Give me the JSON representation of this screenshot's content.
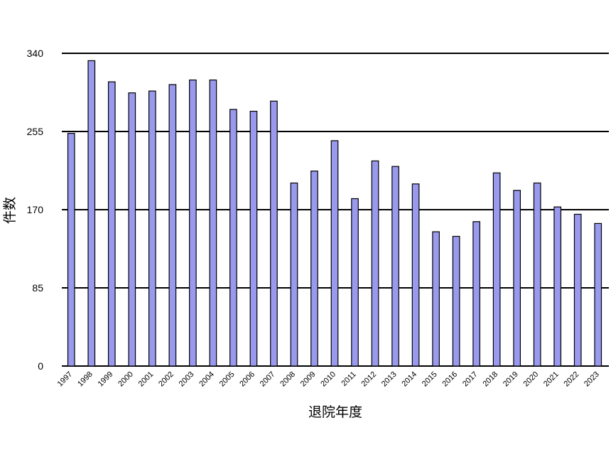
{
  "chart_data": {
    "type": "bar",
    "xlabel": "退院年度",
    "ylabel": "件数",
    "ylim": [
      0,
      340
    ],
    "yticks": [
      0,
      85,
      170,
      255,
      340
    ],
    "grid": "horizontal",
    "bar_color": "#9999ee",
    "categories": [
      "1997",
      "1998",
      "1999",
      "2000",
      "2001",
      "2002",
      "2003",
      "2004",
      "2005",
      "2006",
      "2007",
      "2008",
      "2009",
      "2010",
      "2011",
      "2012",
      "2013",
      "2014",
      "2015",
      "2016",
      "2017",
      "2018",
      "2019",
      "2020",
      "2021",
      "2022",
      "2023"
    ],
    "values": [
      253,
      332,
      309,
      297,
      299,
      306,
      311,
      311,
      279,
      277,
      288,
      199,
      212,
      245,
      182,
      223,
      217,
      198,
      146,
      141,
      157,
      210,
      191,
      199,
      173,
      165,
      155
    ]
  }
}
